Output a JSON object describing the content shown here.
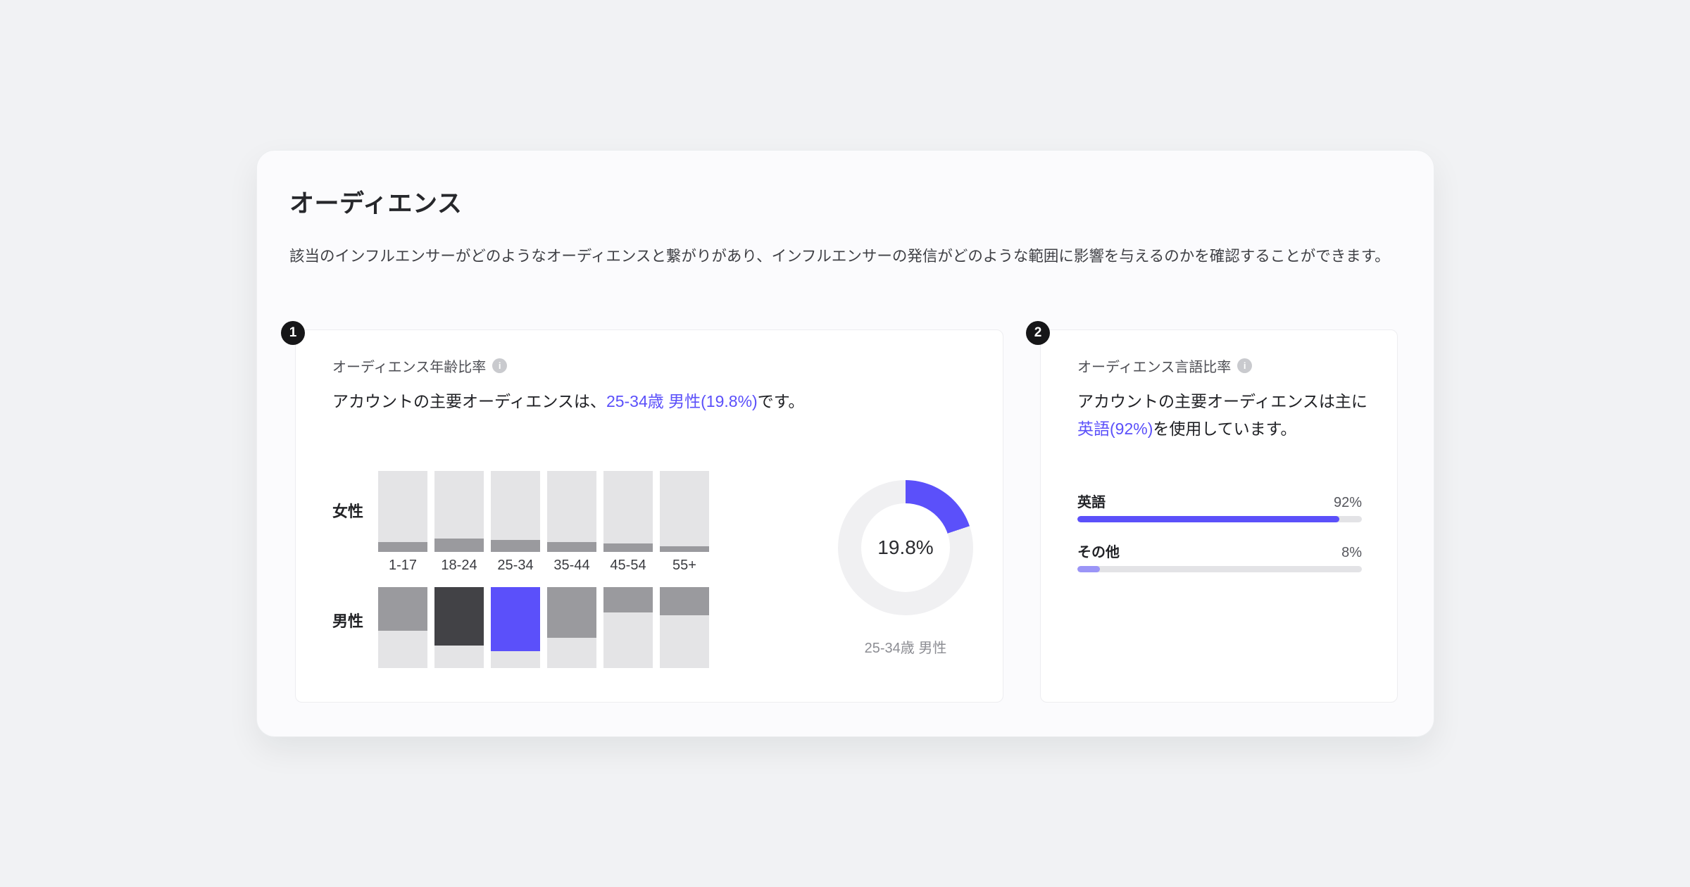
{
  "page": {
    "background": "#F1F2F4"
  },
  "colors": {
    "accent": "#5B50FA",
    "accent_light": "#9B95F7",
    "bar_gray": "#9A9A9E",
    "bar_dark": "#424246",
    "bar_track": "#E4E4E6",
    "donut_track": "#F0F0F2",
    "progress_track": "#E3E3E6",
    "badge_bg": "#161618"
  },
  "panel": {
    "title": "オーディエンス",
    "description": "該当のインフルエンサーがどのようなオーディエンスと繋がりがあり、インフルエンサーの発信がどのような範囲に影響を与えるのかを確認することができます。"
  },
  "age_card": {
    "badge": "1",
    "header": "オーディエンス年齢比率",
    "info_icon": "info-icon",
    "summary": {
      "prefix": "アカウントの主要オーディエンスは、",
      "highlight": "25-34歳 男性(19.8%)",
      "suffix": "です。"
    }
  },
  "language_card": {
    "badge": "2",
    "header": "オーディエンス言語比率",
    "info_icon": "info-icon",
    "summary": {
      "prefix": "アカウントの主要オーディエンスは主に",
      "highlight": "英語(92%)",
      "suffix": "を使用しています。"
    }
  },
  "chart_data": [
    {
      "type": "bar",
      "title": "オーディエンス年齢比率",
      "categories": [
        "1-17",
        "18-24",
        "25-34",
        "35-44",
        "45-54",
        "55+"
      ],
      "series": [
        {
          "name": "女性",
          "values": [
            3.1,
            4.2,
            3.8,
            3.0,
            2.6,
            1.8
          ]
        },
        {
          "name": "男性",
          "values": [
            13.4,
            18.1,
            19.8,
            15.7,
            7.8,
            8.7
          ]
        }
      ],
      "axis_max": 25,
      "orientation": "mirrored-columns",
      "highlight": {
        "series": "男性",
        "category": "25-34",
        "value": 19.8,
        "color": "#5B50FA"
      },
      "emphasis": {
        "series": "男性",
        "category": "18-24",
        "value": 18.1,
        "color": "#424246"
      }
    },
    {
      "type": "donut",
      "value": 19.8,
      "center_text": "19.8%",
      "label": "25-34歳 男性",
      "slice_color": "#5B50FA",
      "track_color": "#F0F0F2"
    },
    {
      "type": "bar-horizontal",
      "title": "オーディエンス言語比率",
      "rows": [
        {
          "label": "英語",
          "value": 92,
          "display": "92%",
          "color": "#5B50FA"
        },
        {
          "label": "その他",
          "value": 8,
          "display": "8%",
          "color": "#9B95F7"
        }
      ]
    }
  ]
}
